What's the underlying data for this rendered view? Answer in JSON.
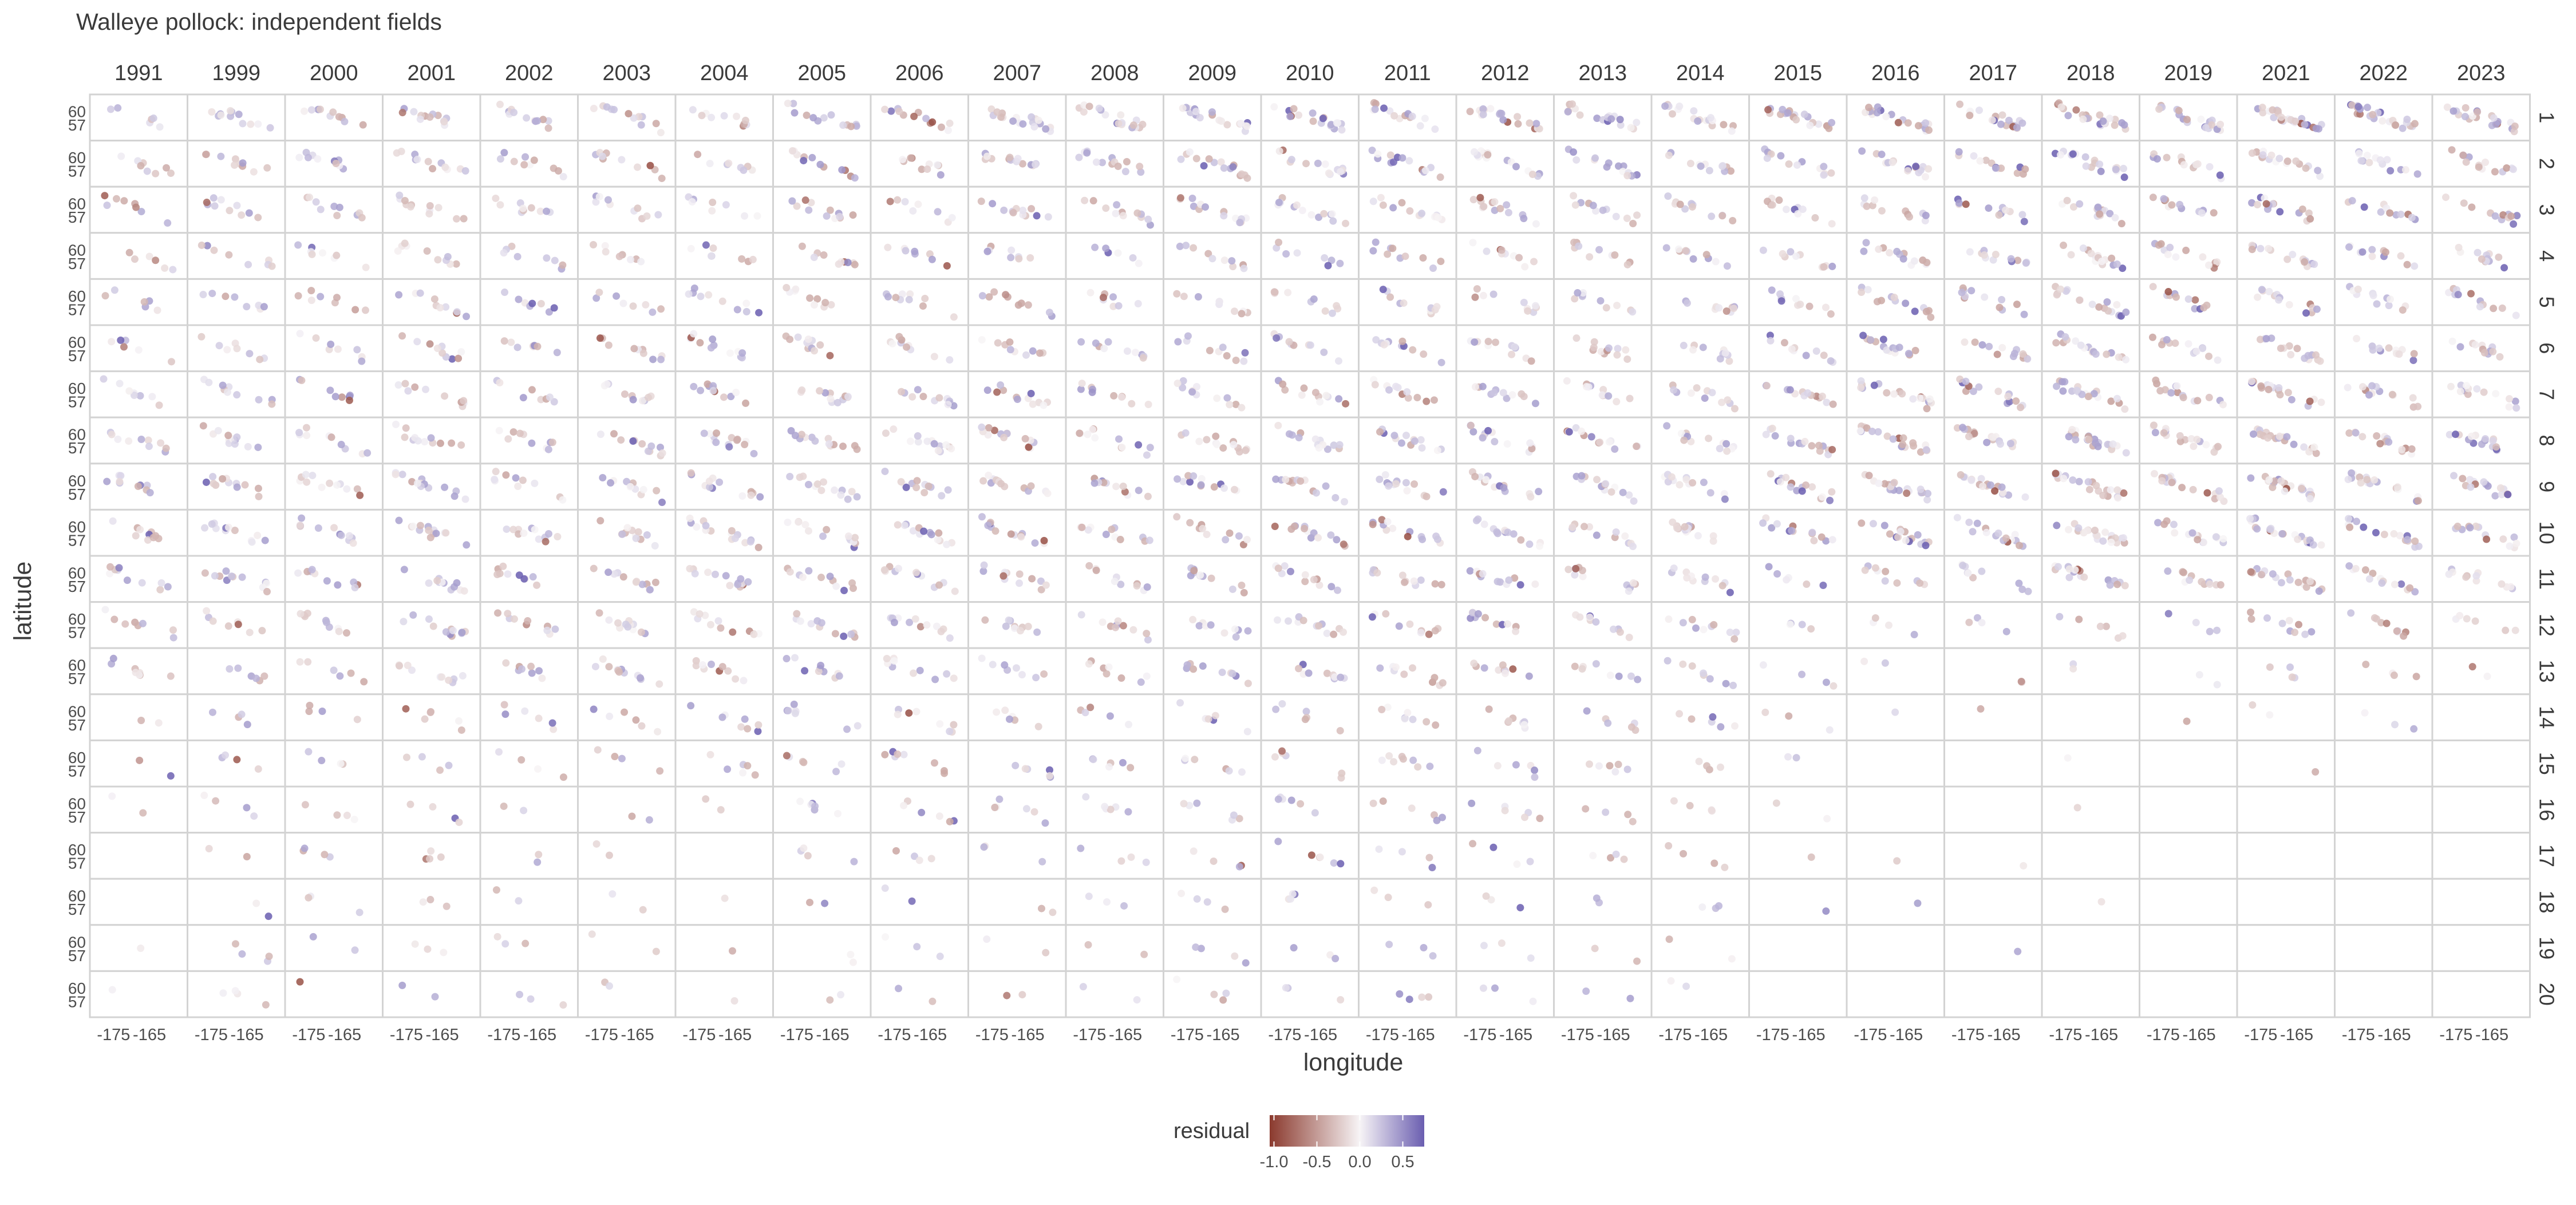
{
  "chart_data": {
    "type": "scatter",
    "title": "Walleye pollock: independent fields",
    "xlabel": "longitude",
    "ylabel": "latitude",
    "facet_columns": [
      "1991",
      "1999",
      "2000",
      "2001",
      "2002",
      "2003",
      "2004",
      "2005",
      "2006",
      "2007",
      "2008",
      "2009",
      "2010",
      "2011",
      "2012",
      "2013",
      "2014",
      "2015",
      "2016",
      "2017",
      "2018",
      "2019",
      "2021",
      "2022",
      "2023"
    ],
    "facet_rows": [
      "1",
      "2",
      "3",
      "4",
      "5",
      "6",
      "7",
      "8",
      "9",
      "10",
      "11",
      "12",
      "13",
      "14",
      "15",
      "16",
      "17",
      "18",
      "19",
      "20"
    ],
    "x_ticks": [
      "-175",
      "-165"
    ],
    "x_tick_values": [
      -175,
      -165
    ],
    "y_ticks": [
      "57",
      "60"
    ],
    "y_tick_values": [
      57,
      60
    ],
    "xlim": [
      -180,
      -156
    ],
    "ylim": [
      54.5,
      63
    ],
    "legend": {
      "title": "residual",
      "placement": "bottom",
      "ticks": [
        "-1.0",
        "-0.5",
        "0.0",
        "0.5"
      ],
      "tick_values": [
        -1.0,
        -0.5,
        0.0,
        0.5
      ],
      "range": [
        -1.05,
        0.75
      ],
      "colors": {
        "low": "#8b3a2e",
        "mid": "#f7f4f6",
        "high": "#6a5eb0"
      }
    },
    "points_per_cell": [
      [
        6,
        12,
        10,
        13,
        12,
        12,
        10,
        14,
        13,
        20,
        18,
        20,
        18,
        16,
        20,
        18,
        18,
        20,
        22,
        20,
        24,
        22,
        26,
        26,
        22
      ],
      [
        8,
        10,
        10,
        12,
        10,
        10,
        8,
        12,
        10,
        14,
        14,
        16,
        14,
        14,
        16,
        14,
        12,
        14,
        16,
        14,
        20,
        14,
        18,
        14,
        14
      ],
      [
        8,
        10,
        10,
        12,
        10,
        10,
        8,
        12,
        8,
        12,
        12,
        14,
        14,
        14,
        14,
        12,
        12,
        12,
        12,
        12,
        16,
        12,
        16,
        12,
        12
      ],
      [
        6,
        8,
        8,
        10,
        8,
        8,
        8,
        10,
        8,
        8,
        6,
        10,
        8,
        10,
        10,
        10,
        10,
        10,
        14,
        12,
        16,
        14,
        14,
        12,
        12
      ],
      [
        6,
        8,
        8,
        10,
        8,
        8,
        10,
        10,
        10,
        10,
        8,
        10,
        10,
        10,
        10,
        10,
        10,
        10,
        14,
        12,
        18,
        12,
        14,
        12,
        12
      ],
      [
        6,
        8,
        8,
        10,
        8,
        10,
        12,
        12,
        10,
        10,
        10,
        10,
        10,
        12,
        12,
        12,
        10,
        12,
        16,
        14,
        18,
        14,
        16,
        12,
        12
      ],
      [
        8,
        10,
        8,
        10,
        8,
        10,
        12,
        12,
        12,
        12,
        10,
        12,
        12,
        12,
        12,
        12,
        12,
        14,
        18,
        16,
        20,
        16,
        18,
        14,
        14
      ],
      [
        10,
        12,
        10,
        12,
        10,
        12,
        14,
        14,
        14,
        14,
        12,
        14,
        14,
        14,
        14,
        14,
        14,
        16,
        20,
        18,
        22,
        18,
        20,
        16,
        16
      ],
      [
        10,
        12,
        12,
        14,
        10,
        12,
        14,
        14,
        14,
        14,
        12,
        14,
        14,
        14,
        14,
        14,
        14,
        16,
        20,
        18,
        22,
        18,
        22,
        18,
        16
      ],
      [
        10,
        12,
        12,
        14,
        12,
        12,
        16,
        14,
        14,
        14,
        12,
        12,
        14,
        14,
        14,
        12,
        14,
        14,
        18,
        16,
        22,
        16,
        22,
        18,
        14
      ],
      [
        10,
        12,
        10,
        12,
        10,
        12,
        14,
        12,
        12,
        12,
        10,
        12,
        12,
        12,
        12,
        12,
        12,
        6,
        10,
        10,
        18,
        12,
        20,
        14,
        12
      ],
      [
        8,
        8,
        10,
        12,
        10,
        12,
        12,
        12,
        12,
        10,
        10,
        10,
        12,
        10,
        12,
        10,
        10,
        4,
        4,
        4,
        6,
        4,
        10,
        10,
        6
      ],
      [
        8,
        6,
        6,
        10,
        8,
        12,
        10,
        10,
        10,
        8,
        8,
        10,
        10,
        10,
        10,
        8,
        8,
        4,
        2,
        2,
        2,
        2,
        4,
        4,
        2
      ],
      [
        2,
        4,
        4,
        6,
        6,
        6,
        8,
        8,
        8,
        6,
        6,
        6,
        6,
        8,
        8,
        6,
        6,
        3,
        1,
        1,
        0,
        1,
        2,
        3,
        0
      ],
      [
        2,
        4,
        4,
        4,
        4,
        4,
        6,
        6,
        8,
        6,
        6,
        6,
        6,
        8,
        6,
        6,
        4,
        2,
        0,
        0,
        1,
        0,
        1,
        0,
        0
      ],
      [
        2,
        4,
        4,
        4,
        2,
        2,
        2,
        6,
        6,
        6,
        6,
        6,
        6,
        6,
        6,
        4,
        4,
        2,
        0,
        0,
        1,
        0,
        0,
        0,
        0
      ],
      [
        0,
        2,
        4,
        4,
        2,
        2,
        0,
        4,
        4,
        3,
        4,
        4,
        6,
        4,
        4,
        4,
        4,
        1,
        1,
        1,
        0,
        0,
        0,
        0,
        0
      ],
      [
        0,
        2,
        3,
        3,
        2,
        2,
        1,
        2,
        2,
        2,
        3,
        4,
        4,
        3,
        3,
        2,
        3,
        1,
        1,
        0,
        1,
        0,
        0,
        0,
        0
      ],
      [
        1,
        4,
        2,
        3,
        3,
        2,
        1,
        2,
        3,
        2,
        2,
        4,
        3,
        3,
        3,
        2,
        2,
        0,
        0,
        1,
        0,
        0,
        0,
        0,
        0
      ],
      [
        1,
        4,
        1,
        2,
        3,
        2,
        1,
        2,
        2,
        2,
        2,
        4,
        3,
        4,
        3,
        2,
        2,
        0,
        0,
        0,
        0,
        0,
        0,
        0,
        0
      ]
    ],
    "residual_summary": "Point color encodes residual on a diverging scale from about -1.0 (dark red) through 0.0 (near white) to about 0.7 (purple)."
  }
}
